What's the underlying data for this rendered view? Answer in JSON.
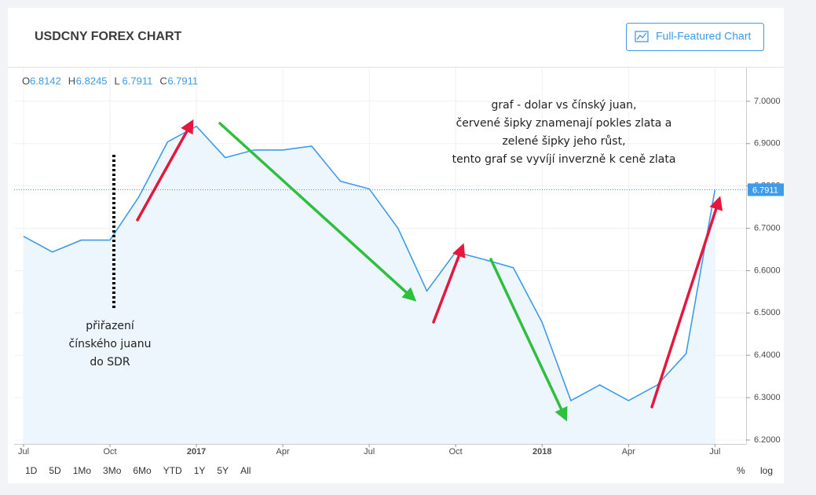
{
  "header": {
    "title": "USDCNY FOREX CHART",
    "button": "Full-Featured Chart"
  },
  "ohlc": [
    {
      "name": "O",
      "value": 6.8142
    },
    {
      "name": "H",
      "value": 6.8245
    },
    {
      "name": "L",
      "value": 6.7911
    },
    {
      "name": "C",
      "value": 6.7911
    }
  ],
  "chart_data": {
    "type": "line",
    "color": "#3d9be9",
    "x": [
      "2016-07",
      "2016-08",
      "2016-09",
      "2016-10",
      "2016-11",
      "2016-12",
      "2017-01",
      "2017-02",
      "2017-03",
      "2017-04",
      "2017-05",
      "2017-06",
      "2017-07",
      "2017-08",
      "2017-09",
      "2017-10",
      "2017-11",
      "2017-12",
      "2018-01",
      "2018-02",
      "2018-03",
      "2018-04",
      "2018-05",
      "2018-06",
      "2018-07"
    ],
    "values": [
      6.681,
      6.644,
      6.672,
      6.672,
      6.774,
      6.904,
      6.941,
      6.867,
      6.885,
      6.885,
      6.894,
      6.811,
      6.793,
      6.7,
      6.552,
      6.644,
      6.626,
      6.607,
      6.478,
      6.293,
      6.33,
      6.293,
      6.33,
      6.404,
      6.7911
    ],
    "xlim": [
      "2016-07",
      "2018-08"
    ],
    "xticks": [
      {
        "value": "2016-07",
        "label": "Jul"
      },
      {
        "value": "2016-10",
        "label": "Oct"
      },
      {
        "value": "2017-01",
        "label": "2017"
      },
      {
        "value": "2017-04",
        "label": "Apr"
      },
      {
        "value": "2017-07",
        "label": "Jul"
      },
      {
        "value": "2017-10",
        "label": "Oct"
      },
      {
        "value": "2018-01",
        "label": "2018"
      },
      {
        "value": "2018-04",
        "label": "Apr"
      },
      {
        "value": "2018-07",
        "label": "Jul"
      }
    ],
    "ylim": [
      6.1907,
      7.0796
    ],
    "yticks": [
      {
        "value": 6.2,
        "label": "6.2000"
      },
      {
        "value": 6.3,
        "label": "6.3000"
      },
      {
        "value": 6.4,
        "label": "6.4000"
      },
      {
        "value": 6.5,
        "label": "6.5000"
      },
      {
        "value": 6.6,
        "label": "6.6000"
      },
      {
        "value": 6.7,
        "label": "6.7000"
      },
      {
        "value": 6.8,
        "label": "6.8000"
      },
      {
        "value": 6.9,
        "label": "6.9000"
      },
      {
        "value": 7.0,
        "label": "7.0000"
      }
    ],
    "grid": true,
    "last_price": 6.7911,
    "annotations": [
      {
        "lines": [
          "přiřazení",
          "čínského juanu",
          "do SDR"
        ]
      },
      {
        "lines": [
          "graf - dolar vs čínský juan,",
          "červené šipky znamenají pokles zlata a",
          "zelené šipky jeho růst,",
          "tento graf se vyvíjí inverzně k ceně zlata"
        ]
      }
    ]
  },
  "ranges": [
    "1D",
    "5D",
    "1Mo",
    "3Mo",
    "6Mo",
    "YTD",
    "1Y",
    "5Y",
    "All"
  ],
  "scale_buttons": [
    "%",
    "log"
  ]
}
